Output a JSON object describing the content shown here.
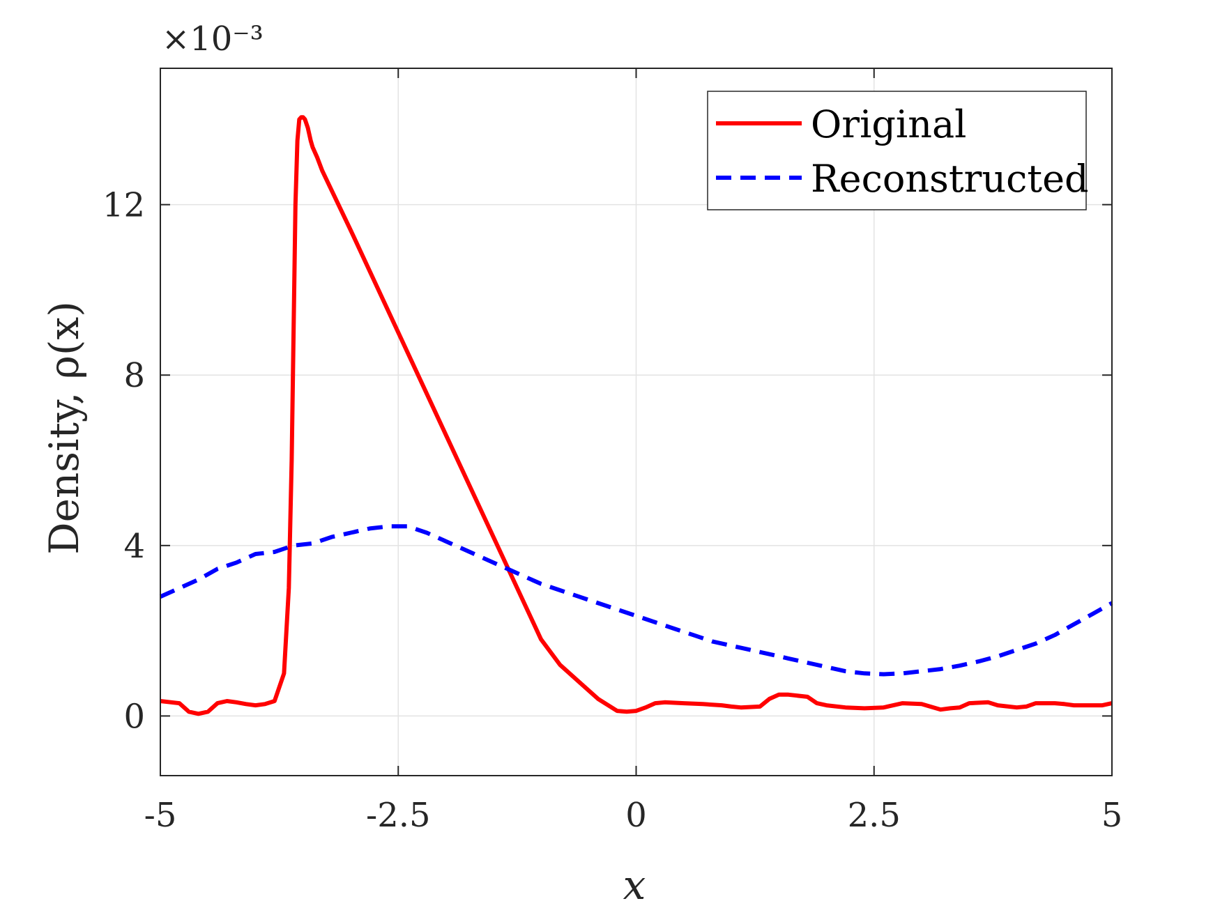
{
  "chart_data": {
    "type": "line",
    "xlabel": "x",
    "ylabel": "Density, ρ(x)",
    "y_multiplier": "×10⁻³",
    "xlim": [
      -5,
      5
    ],
    "ylim": [
      -1.4,
      15.2
    ],
    "x_ticks": [
      -5,
      -2.5,
      0,
      2.5,
      5
    ],
    "x_tick_labels": [
      "-5",
      "-2.5",
      "0",
      "2.5",
      "5"
    ],
    "y_ticks": [
      0,
      4,
      8,
      12
    ],
    "y_tick_labels": [
      "0",
      "4",
      "8",
      "12"
    ],
    "grid": true,
    "legend_position": "top-right",
    "series": [
      {
        "name": "Original",
        "color": "#ff0000",
        "style": "solid",
        "x": [
          -5,
          -4.8,
          -4.7,
          -4.6,
          -4.5,
          -4.4,
          -4.3,
          -4.2,
          -4.1,
          -4.0,
          -3.9,
          -3.8,
          -3.7,
          -3.65,
          -3.62,
          -3.6,
          -3.58,
          -3.56,
          -3.54,
          -3.52,
          -3.5,
          -3.48,
          -3.45,
          -3.42,
          -3.4,
          -3.35,
          -3.3,
          -3.0,
          -2.5,
          -2.0,
          -1.5,
          -1.0,
          -0.8,
          -0.6,
          -0.4,
          -0.2,
          -0.1,
          0,
          0.1,
          0.2,
          0.3,
          0.5,
          0.7,
          0.9,
          1.0,
          1.1,
          1.3,
          1.4,
          1.5,
          1.6,
          1.8,
          1.9,
          2.0,
          2.2,
          2.4,
          2.6,
          2.8,
          3.0,
          3.2,
          3.3,
          3.4,
          3.5,
          3.7,
          3.8,
          4.0,
          4.1,
          4.2,
          4.4,
          4.5,
          4.6,
          4.8,
          4.9,
          5.0
        ],
        "y": [
          0.35,
          0.3,
          0.1,
          0.05,
          0.1,
          0.3,
          0.35,
          0.32,
          0.28,
          0.25,
          0.28,
          0.35,
          1.0,
          3.0,
          6.0,
          9.0,
          12.0,
          13.5,
          14.0,
          14.05,
          14.05,
          14.0,
          13.8,
          13.5,
          13.35,
          13.1,
          12.8,
          11.4,
          9.0,
          6.6,
          4.2,
          1.8,
          1.2,
          0.8,
          0.4,
          0.12,
          0.1,
          0.12,
          0.2,
          0.3,
          0.32,
          0.3,
          0.28,
          0.25,
          0.22,
          0.2,
          0.22,
          0.4,
          0.5,
          0.5,
          0.45,
          0.3,
          0.25,
          0.2,
          0.18,
          0.2,
          0.3,
          0.28,
          0.15,
          0.18,
          0.2,
          0.3,
          0.32,
          0.25,
          0.2,
          0.22,
          0.3,
          0.3,
          0.28,
          0.25,
          0.25,
          0.25,
          0.3
        ]
      },
      {
        "name": "Reconstructed",
        "color": "#0000ff",
        "style": "dashed",
        "x": [
          -5,
          -4.8,
          -4.6,
          -4.4,
          -4.2,
          -4.0,
          -3.8,
          -3.6,
          -3.4,
          -3.2,
          -3.0,
          -2.8,
          -2.6,
          -2.4,
          -2.2,
          -2.0,
          -1.8,
          -1.6,
          -1.4,
          -1.2,
          -1.0,
          -0.8,
          -0.6,
          -0.4,
          -0.2,
          0,
          0.2,
          0.4,
          0.6,
          0.8,
          1.0,
          1.2,
          1.4,
          1.6,
          1.8,
          2.0,
          2.2,
          2.4,
          2.6,
          2.8,
          3.0,
          3.2,
          3.4,
          3.6,
          3.8,
          4.0,
          4.2,
          4.4,
          4.6,
          4.8,
          5.0
        ],
        "y": [
          2.8,
          3.0,
          3.2,
          3.45,
          3.6,
          3.8,
          3.85,
          4.0,
          4.05,
          4.2,
          4.3,
          4.4,
          4.45,
          4.45,
          4.3,
          4.1,
          3.9,
          3.7,
          3.5,
          3.3,
          3.1,
          2.95,
          2.8,
          2.65,
          2.5,
          2.35,
          2.2,
          2.05,
          1.9,
          1.75,
          1.65,
          1.55,
          1.45,
          1.35,
          1.25,
          1.15,
          1.05,
          1.0,
          0.98,
          1.0,
          1.05,
          1.1,
          1.18,
          1.28,
          1.4,
          1.55,
          1.7,
          1.9,
          2.15,
          2.4,
          2.65
        ]
      }
    ],
    "legend": [
      {
        "label": "Original",
        "color": "#ff0000",
        "style": "solid"
      },
      {
        "label": "Reconstructed",
        "color": "#0000ff",
        "style": "dashed"
      }
    ]
  }
}
